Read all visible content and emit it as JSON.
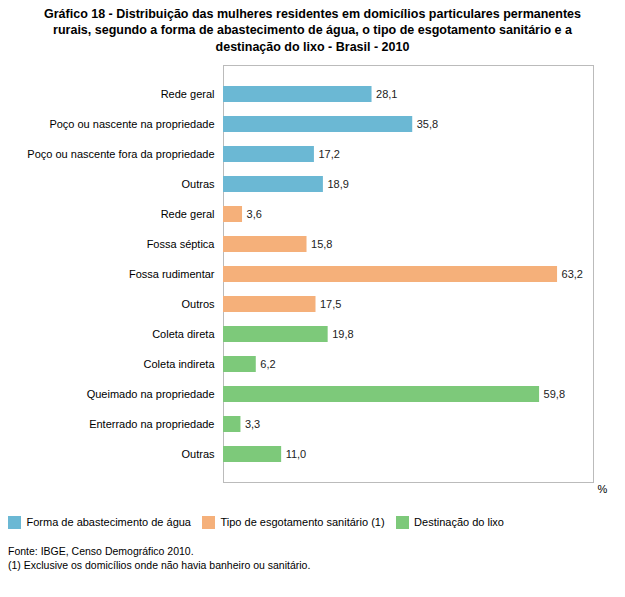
{
  "chart_data": {
    "type": "bar",
    "orientation": "horizontal",
    "title": "Gráfico 18 - Distribuição das mulheres residentes em domicílios particulares permanentes\nrurais, segundo a forma de abastecimento de água, o tipo de esgotamento sanitário e a\ndestinação do lixo - Brasil - 2010",
    "categories": [
      "Rede geral",
      "Poço ou nascente na propriedade",
      "Poço ou nascente fora da propriedade",
      "Outras",
      "Rede geral",
      "Fossa séptica",
      "Fossa rudimentar",
      "Outros",
      "Coleta direta",
      "Coleta indireta",
      "Queimado na propriedade",
      "Enterrado na propriedade",
      "Outras"
    ],
    "values": [
      28.1,
      35.8,
      17.2,
      18.9,
      3.6,
      15.8,
      63.2,
      17.5,
      19.8,
      6.2,
      59.8,
      3.3,
      11.0
    ],
    "value_labels": [
      "28,1",
      "35,8",
      "17,2",
      "18,9",
      "3,6",
      "15,8",
      "63,2",
      "17,5",
      "19,8",
      "6,2",
      "59,8",
      "3,3",
      "11,0"
    ],
    "data_labels": true,
    "colors": [
      "#6BB8D4",
      "#6BB8D4",
      "#6BB8D4",
      "#6BB8D4",
      "#F5B07A",
      "#F5B07A",
      "#F5B07A",
      "#F5B07A",
      "#7DC97A",
      "#7DC97A",
      "#7DC97A",
      "#7DC97A",
      "#7DC97A"
    ],
    "legend": "bottom-left",
    "legend_entries": [
      {
        "name": "Forma de abastecimento de água",
        "color": "#6BB8D4"
      },
      {
        "name": "Tipo de esgotamento sanitário (1)",
        "color": "#F5B07A"
      },
      {
        "name": "Destinação do lixo",
        "color": "#7DC97A"
      }
    ],
    "xlabel": "%",
    "xlim": [
      0,
      70
    ],
    "tick_labels": "y",
    "grid": false,
    "source": "Fonte: IBGE, Censo Demográfico 2010.",
    "note": "(1) Exclusive os domicílios onde não havia banheiro ou sanitário."
  }
}
